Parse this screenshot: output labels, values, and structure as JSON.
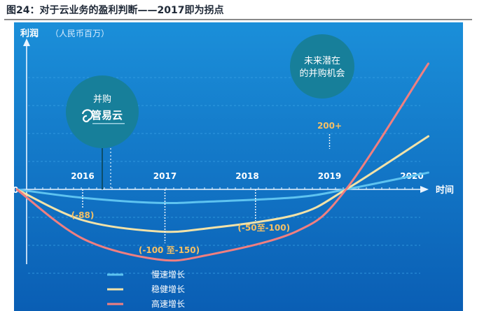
{
  "figure_title": "图24：对于云业务的盈利判断——2017即为拐点",
  "chart_data": {
    "type": "line",
    "ylabel": "利润",
    "yunit": "（人民币百万）",
    "xlabel": "时间",
    "origin_label": "0",
    "categories": [
      "2016",
      "2017",
      "2018",
      "2019",
      "2020"
    ],
    "series": [
      {
        "name": "慢速增长",
        "color": "#5ec3f0",
        "x": [
          2015.2,
          2016.0,
          2016.9,
          2017.5,
          2018.6,
          2019.2,
          2020.2
        ],
        "y": [
          0,
          -15,
          -24,
          -22,
          -14,
          0,
          30
        ]
      },
      {
        "name": "稳健增长",
        "color": "#f2e2a8",
        "x": [
          2015.2,
          2016.0,
          2016.9,
          2017.5,
          2018.6,
          2019.2,
          2020.2
        ],
        "y": [
          0,
          -55,
          -75,
          -70,
          -45,
          0,
          95
        ]
      },
      {
        "name": "高速增长",
        "color": "#f07f80",
        "x": [
          2015.2,
          2016.0,
          2016.9,
          2017.5,
          2018.6,
          2019.2,
          2020.2
        ],
        "y": [
          0,
          -88,
          -125,
          -118,
          -75,
          0,
          225
        ]
      }
    ],
    "annotations": [
      {
        "text": "(-88)",
        "x": 2016.0,
        "y": -88
      },
      {
        "text": "(-100 至-150)",
        "x": 2017.0,
        "y": -125
      },
      {
        "text": "(-50至-100)",
        "x": 2018.1,
        "y": -75
      },
      {
        "text": "200+",
        "x": 2019.0,
        "y": 110
      }
    ],
    "bubbles": [
      {
        "title": "并购",
        "logo_text": "管易云"
      },
      {
        "title": "未来潜在",
        "subtitle": "的并购机会"
      }
    ],
    "legend_position": "bottom-left",
    "grid": true,
    "colors": {
      "bg_top": "#1387d4",
      "bg_bottom": "#0a5fb5",
      "bubble": "#177f9a",
      "annotation": "#f5c064"
    }
  }
}
